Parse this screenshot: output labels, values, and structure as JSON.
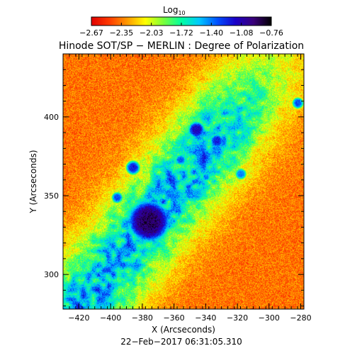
{
  "chart_data": {
    "type": "heatmap",
    "title": "Hinode SOT/SP − MERLIN : Degree of Polarization",
    "xlabel": "X (Arcseconds)",
    "ylabel": "Y (Arcseconds)",
    "date_label": "22−Feb−2017 06:31:05.310",
    "colorbar": {
      "label_base": "Log",
      "label_sub": "10",
      "tick_labels": [
        "−2.67",
        "−2.35",
        "−2.03",
        "−1.72",
        "−1.40",
        "−1.08",
        "−0.76"
      ],
      "range": [
        -2.67,
        -0.76
      ],
      "colormap": [
        "#e00000",
        "#ff3a00",
        "#ff9a00",
        "#ffff00",
        "#7aff3a",
        "#00ffa0",
        "#00c8ff",
        "#0050ff",
        "#1a00c8",
        "#3a007a",
        "#000000"
      ]
    },
    "x_axis": {
      "range": [
        -430,
        -278
      ],
      "ticks": [
        -420,
        -400,
        -380,
        -360,
        -340,
        -320,
        -300,
        -280
      ],
      "tick_labels": [
        "−420",
        "−400",
        "−380",
        "−360",
        "−340",
        "−320",
        "−300",
        "−280"
      ]
    },
    "y_axis": {
      "range": [
        278,
        440
      ],
      "ticks": [
        300,
        350,
        400
      ],
      "tick_labels": [
        "300",
        "350",
        "400"
      ]
    },
    "features": [
      {
        "name": "sunspot",
        "x": -376,
        "y": 334,
        "radius": 15,
        "peak": -0.76
      },
      {
        "name": "penumbra-ring",
        "x": -376,
        "y": 334,
        "radius": 30,
        "peak": -1.6
      },
      {
        "name": "pore",
        "x": -346,
        "y": 392,
        "radius": 6,
        "peak": -1.0
      },
      {
        "name": "pore",
        "x": -386,
        "y": 368,
        "radius": 5,
        "peak": -1.1
      },
      {
        "name": "pore",
        "x": -396,
        "y": 349,
        "radius": 4,
        "peak": -1.2
      },
      {
        "name": "pore",
        "x": -333,
        "y": 385,
        "radius": 5,
        "peak": -1.1
      },
      {
        "name": "pore",
        "x": -318,
        "y": 364,
        "radius": 4,
        "peak": -1.3
      },
      {
        "name": "pore",
        "x": -282,
        "y": 409,
        "radius": 4,
        "peak": -1.2
      },
      {
        "name": "pore",
        "x": -356,
        "y": 373,
        "radius": 4,
        "peak": -1.25
      },
      {
        "name": "pore",
        "x": -340,
        "y": 362,
        "radius": 3,
        "peak": -1.3
      }
    ],
    "grid": false,
    "legend": "colorbar-top"
  }
}
